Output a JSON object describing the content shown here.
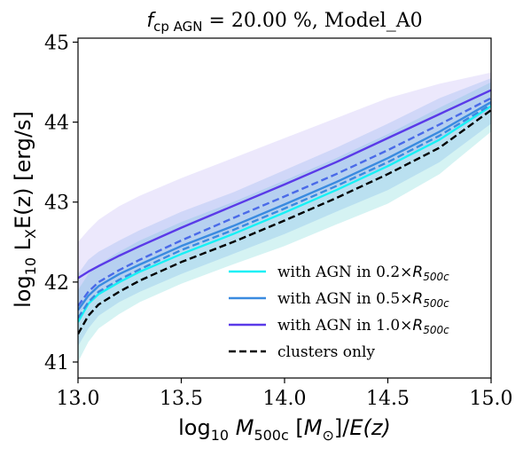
{
  "chart_data": {
    "type": "line",
    "title": {
      "prefix": "f",
      "prefix_sub": "cp AGN",
      "rest": " = 20.00 %, Model_A0"
    },
    "xlabel": {
      "pre": "log",
      "pre_sub": "10",
      "var": "M",
      "var_sub": "500c",
      "open": " [",
      "unit": "M",
      "unit_sub": "⊙",
      "close": "]/",
      "tail": "E(z)"
    },
    "ylabel": {
      "pre": "log",
      "pre_sub": "10",
      "main": " L",
      "main_sub": "X",
      "rest": "E(z) [erg/s]"
    },
    "xlim": [
      13.0,
      15.0
    ],
    "ylim": [
      40.8,
      45.05
    ],
    "xticks": [
      {
        "value": 13.0,
        "label": "13.0"
      },
      {
        "value": 13.5,
        "label": "13.5"
      },
      {
        "value": 14.0,
        "label": "14.0"
      },
      {
        "value": 14.5,
        "label": "14.5"
      },
      {
        "value": 15.0,
        "label": "15.0"
      }
    ],
    "yticks": [
      {
        "value": 41,
        "label": "41"
      },
      {
        "value": 42,
        "label": "42"
      },
      {
        "value": 43,
        "label": "43"
      },
      {
        "value": 44,
        "label": "44"
      },
      {
        "value": 45,
        "label": "45"
      }
    ],
    "grid": false,
    "legend_position": "lower-right",
    "legend": [
      {
        "label": "with AGN in 0.2×",
        "r": "R",
        "r_sub": "500c",
        "color": "#18f0f5",
        "dash": false
      },
      {
        "label": "with AGN in 0.5×",
        "r": "R",
        "r_sub": "500c",
        "color": "#3a8be0",
        "dash": false
      },
      {
        "label": "with AGN in 1.0×",
        "r": "R",
        "r_sub": "500c",
        "color": "#5a3ae8",
        "dash": false
      },
      {
        "label": "clusters only",
        "r": "",
        "r_sub": "",
        "color": "#000000",
        "dash": true
      }
    ],
    "series": [
      {
        "color": "#18f0f5",
        "dash": false,
        "band_color": "#3ec8c8",
        "x": [
          13.0,
          13.05,
          13.1,
          13.2,
          13.3,
          13.5,
          13.75,
          14.0,
          14.25,
          14.5,
          14.75,
          15.0
        ],
        "y": [
          41.5,
          41.73,
          41.85,
          42.0,
          42.13,
          42.35,
          42.6,
          42.87,
          43.15,
          43.45,
          43.78,
          44.2
        ],
        "y_lo": [
          41.0,
          41.25,
          41.42,
          41.6,
          41.75,
          41.98,
          42.22,
          42.45,
          42.72,
          42.98,
          43.35,
          43.88
        ],
        "y_hi": [
          41.9,
          42.1,
          42.22,
          42.38,
          42.52,
          42.75,
          43.0,
          43.27,
          43.55,
          43.85,
          44.18,
          44.5
        ]
      },
      {
        "color": "#3a8be0",
        "dash": false,
        "band_color": "#5a9ee8",
        "x": [
          13.0,
          13.05,
          13.1,
          13.2,
          13.3,
          13.5,
          13.75,
          14.0,
          14.25,
          14.5,
          14.75,
          15.0
        ],
        "y": [
          41.65,
          41.83,
          41.95,
          42.1,
          42.22,
          42.45,
          42.7,
          42.97,
          43.25,
          43.55,
          43.88,
          44.25
        ],
        "y_lo": [
          41.2,
          41.42,
          41.58,
          41.75,
          41.88,
          42.1,
          42.35,
          42.6,
          42.88,
          43.15,
          43.5,
          43.98
        ],
        "y_hi": [
          42.1,
          42.28,
          42.38,
          42.52,
          42.65,
          42.88,
          43.12,
          43.4,
          43.68,
          43.98,
          44.3,
          44.55
        ]
      },
      {
        "color": "#5a3ae8",
        "dash": false,
        "band_color": "#a898f0",
        "x": [
          13.0,
          13.05,
          13.1,
          13.2,
          13.3,
          13.5,
          13.75,
          14.0,
          14.25,
          14.5,
          14.75,
          15.0
        ],
        "y": [
          42.05,
          42.13,
          42.2,
          42.33,
          42.45,
          42.68,
          42.95,
          43.22,
          43.5,
          43.8,
          44.1,
          44.4
        ],
        "y_lo": [
          41.6,
          41.73,
          41.85,
          42.02,
          42.15,
          42.38,
          42.62,
          42.9,
          43.18,
          43.45,
          43.78,
          44.15
        ],
        "y_hi": [
          42.5,
          42.65,
          42.78,
          42.95,
          43.08,
          43.3,
          43.55,
          43.8,
          44.05,
          44.3,
          44.48,
          44.62
        ]
      },
      {
        "color": "#4a6ae8",
        "dash": true,
        "band_color": null,
        "x": [
          13.0,
          13.05,
          13.1,
          13.2,
          13.3,
          13.5,
          13.75,
          14.0,
          14.25,
          14.5,
          14.75,
          15.0
        ],
        "y": [
          41.7,
          41.88,
          42.0,
          42.15,
          42.28,
          42.52,
          42.8,
          43.07,
          43.35,
          43.65,
          43.97,
          44.3
        ],
        "y_lo": null,
        "y_hi": null
      },
      {
        "color": "#3a8be0",
        "dash": true,
        "band_color": null,
        "x": [
          13.0,
          13.05,
          13.1,
          13.2,
          13.3,
          13.5,
          13.75,
          14.0,
          14.25,
          14.5,
          14.75,
          15.0
        ],
        "y": [
          41.55,
          41.75,
          41.88,
          42.03,
          42.16,
          42.4,
          42.65,
          42.92,
          43.2,
          43.5,
          43.83,
          44.22
        ],
        "y_lo": null,
        "y_hi": null
      },
      {
        "color": "#000000",
        "dash": true,
        "band_color": null,
        "x": [
          13.0,
          13.05,
          13.1,
          13.2,
          13.3,
          13.5,
          13.75,
          14.0,
          14.25,
          14.5,
          14.75,
          15.0
        ],
        "y": [
          41.35,
          41.58,
          41.72,
          41.88,
          42.02,
          42.25,
          42.5,
          42.77,
          43.05,
          43.35,
          43.68,
          44.15
        ],
        "y_lo": null,
        "y_hi": null
      }
    ]
  }
}
